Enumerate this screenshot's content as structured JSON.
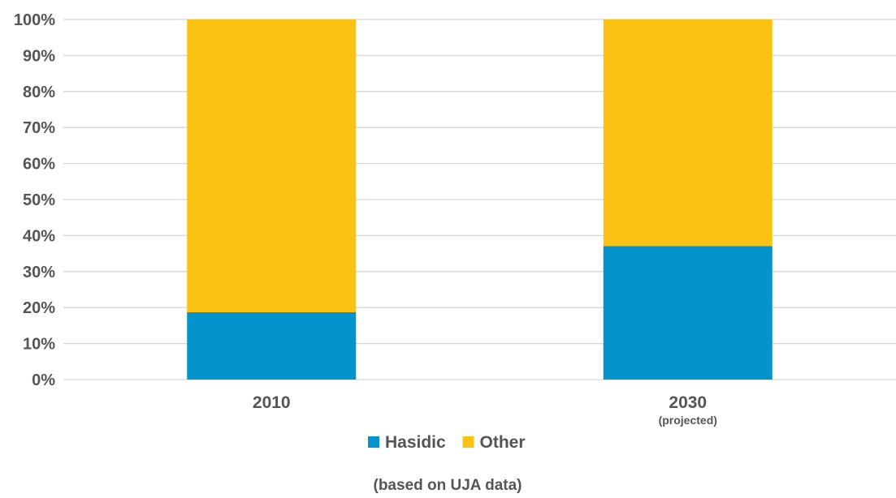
{
  "chart_data": {
    "type": "bar",
    "stacked": true,
    "percent": true,
    "categories": [
      "2010",
      "2030"
    ],
    "category_notes": [
      "",
      "(projected)"
    ],
    "series": [
      {
        "name": "Hasidic",
        "color": "#0493CB",
        "values": [
          18.7,
          37.1
        ]
      },
      {
        "name": "Other",
        "color": "#FCC213",
        "values": [
          81.3,
          62.9
        ]
      }
    ],
    "y_ticks": [
      "0%",
      "10%",
      "20%",
      "30%",
      "40%",
      "50%",
      "60%",
      "70%",
      "80%",
      "90%",
      "100%"
    ],
    "ylim": [
      0,
      100
    ],
    "grid": true,
    "legend_position": "bottom",
    "title": "",
    "xlabel": "",
    "ylabel": "",
    "footnote": "(based on UJA data)"
  }
}
